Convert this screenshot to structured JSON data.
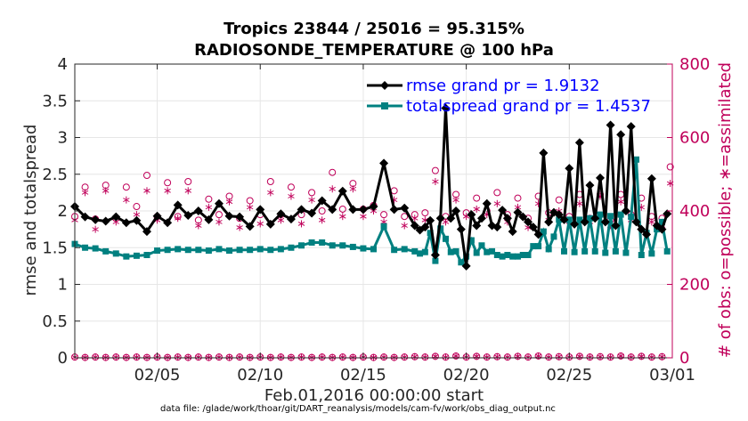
{
  "colors": {
    "rmse": "#000000",
    "spread": "#008080",
    "obs": "#c0005a",
    "legend_text": "#0000ff",
    "axis": "#262626",
    "grid": "#e6e6e6"
  },
  "chart_data": {
    "type": "line",
    "title_line1": "Tropics 23844 / 25016 = 95.315%",
    "title_line2": "RADIOSONDE_TEMPERATURE @ 100 hPa",
    "xlabel": "Feb.01,2016 00:00:00 start",
    "ylabel_left": "rmse and totalspread",
    "ylabel_right": "# of obs: o=possible; ∗=assimilated",
    "footnote": "data file: /glade/work/thoar/git/DART_reanalysis/models/cam-fv/work/obs_diag_output.nc",
    "legend": [
      "rmse grand pr = 1.9132",
      "totalspread grand pr = 1.4537"
    ],
    "xlim": [
      1,
      30
    ],
    "ylim_left": [
      0,
      4
    ],
    "ylim_right": [
      0,
      800
    ],
    "x_ticks": [
      5,
      10,
      15,
      20,
      25,
      30
    ],
    "x_tick_labels": [
      "02/05",
      "02/10",
      "02/15",
      "02/20",
      "02/25",
      "03/01"
    ],
    "y_ticks_left": [
      0,
      0.5,
      1,
      1.5,
      2,
      2.5,
      3,
      3.5,
      4
    ],
    "y_tick_labels_left": [
      "0",
      "0.5",
      "1",
      "1.5",
      "2",
      "2.5",
      "3",
      "3.5",
      "4"
    ],
    "y_ticks_right": [
      0,
      200,
      400,
      600,
      800
    ],
    "y_tick_labels_right": [
      "0",
      "200",
      "400",
      "600",
      "800"
    ],
    "rmse": {
      "x": [
        1.0,
        1.5,
        2.0,
        2.5,
        3.0,
        3.5,
        4.0,
        4.5,
        5.0,
        5.5,
        6.0,
        6.5,
        7.0,
        7.5,
        8.0,
        8.5,
        9.0,
        9.5,
        10.0,
        10.5,
        11.0,
        11.5,
        12.0,
        12.5,
        13.0,
        13.5,
        14.0,
        14.5,
        15.0,
        15.5,
        16.0,
        16.5,
        17.0,
        17.5,
        17.75,
        18.0,
        18.25,
        18.5,
        18.75,
        19.0,
        19.25,
        19.5,
        19.75,
        20.0,
        20.25,
        20.5,
        20.75,
        21.0,
        21.25,
        21.5,
        21.75,
        22.0,
        22.25,
        22.5,
        22.75,
        23.0,
        23.25,
        23.5,
        23.75,
        24.0,
        24.25,
        24.5,
        24.75,
        25.0,
        25.25,
        25.5,
        25.75,
        26.0,
        26.25,
        26.5,
        26.75,
        27.0,
        27.25,
        27.5,
        27.75,
        28.0,
        28.25,
        28.5,
        28.75,
        29.0,
        29.25,
        29.5,
        29.75
      ],
      "y": [
        2.06,
        1.92,
        1.88,
        1.86,
        1.92,
        1.84,
        1.87,
        1.72,
        1.93,
        1.84,
        2.08,
        1.94,
        2.0,
        1.88,
        2.1,
        1.93,
        1.92,
        1.79,
        2.02,
        1.82,
        1.96,
        1.89,
        2.02,
        1.97,
        2.14,
        2.02,
        2.27,
        2.02,
        2.02,
        2.06,
        2.65,
        2.02,
        2.04,
        1.8,
        1.74,
        1.78,
        1.87,
        1.4,
        1.9,
        3.4,
        1.9,
        2.0,
        1.75,
        1.25,
        1.95,
        1.8,
        1.9,
        2.1,
        1.8,
        1.78,
        2.01,
        1.9,
        1.72,
        1.98,
        1.92,
        1.85,
        1.78,
        1.68,
        2.79,
        1.85,
        1.98,
        1.95,
        1.88,
        2.58,
        1.82,
        2.93,
        1.85,
        2.35,
        1.9,
        2.45,
        1.85,
        3.17,
        1.8,
        3.04,
        2.0,
        3.15,
        1.85,
        1.75,
        1.68,
        2.44,
        1.8,
        1.75,
        1.96
      ]
    },
    "totalspread": {
      "x": [
        1.0,
        1.5,
        2.0,
        2.5,
        3.0,
        3.5,
        4.0,
        4.5,
        5.0,
        5.5,
        6.0,
        6.5,
        7.0,
        7.5,
        8.0,
        8.5,
        9.0,
        9.5,
        10.0,
        10.5,
        11.0,
        11.5,
        12.0,
        12.5,
        13.0,
        13.5,
        14.0,
        14.5,
        15.0,
        15.5,
        16.0,
        16.5,
        17.0,
        17.5,
        17.75,
        18.0,
        18.25,
        18.5,
        18.75,
        19.0,
        19.25,
        19.5,
        19.75,
        20.0,
        20.25,
        20.5,
        20.75,
        21.0,
        21.25,
        21.5,
        21.75,
        22.0,
        22.25,
        22.5,
        22.75,
        23.0,
        23.25,
        23.5,
        23.75,
        24.0,
        24.25,
        24.5,
        24.75,
        25.0,
        25.25,
        25.5,
        25.75,
        26.0,
        26.25,
        26.5,
        26.75,
        27.0,
        27.25,
        27.5,
        27.75,
        28.0,
        28.25,
        28.5,
        28.75,
        29.0,
        29.25,
        29.5,
        29.75
      ],
      "y": [
        1.55,
        1.5,
        1.49,
        1.45,
        1.42,
        1.38,
        1.39,
        1.4,
        1.46,
        1.47,
        1.48,
        1.47,
        1.47,
        1.46,
        1.48,
        1.46,
        1.47,
        1.47,
        1.48,
        1.47,
        1.48,
        1.5,
        1.53,
        1.57,
        1.57,
        1.53,
        1.53,
        1.51,
        1.49,
        1.48,
        1.79,
        1.47,
        1.48,
        1.45,
        1.42,
        1.44,
        1.7,
        1.32,
        1.76,
        1.62,
        1.44,
        1.45,
        1.3,
        1.38,
        1.6,
        1.43,
        1.53,
        1.44,
        1.45,
        1.4,
        1.38,
        1.4,
        1.38,
        1.38,
        1.4,
        1.4,
        1.52,
        1.52,
        1.72,
        1.48,
        1.65,
        1.88,
        1.45,
        1.88,
        1.44,
        1.88,
        1.45,
        1.9,
        1.45,
        1.95,
        1.43,
        1.93,
        1.45,
        1.95,
        1.43,
        1.92,
        2.7,
        1.4,
        1.7,
        1.42,
        1.75,
        1.85,
        1.45
      ]
    },
    "obs_possible": {
      "x": [
        1.0,
        1.5,
        2.0,
        2.5,
        3.0,
        3.5,
        4.0,
        4.5,
        5.0,
        5.5,
        6.0,
        6.5,
        7.0,
        7.5,
        8.0,
        8.5,
        9.0,
        9.5,
        10.0,
        10.5,
        11.0,
        11.5,
        12.0,
        12.5,
        13.0,
        13.5,
        14.0,
        14.5,
        15.0,
        15.5,
        16.0,
        16.5,
        17.0,
        17.5,
        18.0,
        18.5,
        19.0,
        19.5,
        20.0,
        20.5,
        21.0,
        21.5,
        22.0,
        22.5,
        23.0,
        23.5,
        24.0,
        24.5,
        25.0,
        25.5,
        26.0,
        26.5,
        27.0,
        27.5,
        28.0,
        28.5,
        29.0,
        29.5,
        29.9
      ],
      "y": [
        385,
        465,
        378,
        470,
        380,
        465,
        412,
        497,
        385,
        477,
        385,
        480,
        375,
        432,
        390,
        440,
        380,
        428,
        390,
        480,
        390,
        465,
        390,
        450,
        400,
        505,
        405,
        475,
        405,
        415,
        390,
        455,
        385,
        390,
        395,
        510,
        385,
        445,
        395,
        435,
        400,
        450,
        390,
        435,
        380,
        440,
        395,
        430,
        385,
        445,
        380,
        445,
        375,
        445,
        390,
        435,
        385,
        380,
        520
      ]
    },
    "obs_assimilated": {
      "x": [
        1.0,
        1.5,
        2.0,
        2.5,
        3.0,
        3.5,
        4.0,
        4.5,
        5.0,
        5.5,
        6.0,
        6.5,
        7.0,
        7.5,
        8.0,
        8.5,
        9.0,
        9.5,
        10.0,
        10.5,
        11.0,
        11.5,
        12.0,
        12.5,
        13.0,
        13.5,
        14.0,
        14.5,
        15.0,
        15.5,
        16.0,
        16.5,
        17.0,
        17.5,
        18.0,
        18.5,
        19.0,
        19.5,
        20.0,
        20.5,
        21.0,
        21.5,
        22.0,
        22.5,
        23.0,
        23.5,
        24.0,
        24.5,
        25.0,
        25.5,
        26.0,
        26.5,
        27.0,
        27.5,
        28.0,
        28.5,
        29.0,
        29.5,
        29.9
      ],
      "y": [
        375,
        450,
        350,
        455,
        370,
        430,
        390,
        455,
        375,
        455,
        380,
        455,
        360,
        410,
        370,
        425,
        355,
        410,
        365,
        450,
        375,
        440,
        365,
        430,
        375,
        460,
        385,
        460,
        385,
        400,
        370,
        430,
        360,
        380,
        375,
        480,
        370,
        430,
        385,
        405,
        390,
        420,
        370,
        410,
        355,
        420,
        375,
        400,
        370,
        420,
        370,
        440,
        360,
        425,
        375,
        410,
        370,
        360,
        475
      ]
    },
    "obs_possible_low": {
      "x": [
        1.0,
        1.5,
        2.0,
        2.5,
        3.0,
        3.5,
        4.0,
        4.5,
        5.0,
        5.5,
        6.0,
        6.5,
        7.0,
        7.5,
        8.0,
        8.5,
        9.0,
        9.5,
        10.0,
        10.5,
        11.0,
        11.5,
        12.0,
        12.5,
        13.0,
        13.5,
        14.0,
        14.5,
        15.0,
        15.5,
        16.0,
        16.5,
        17.0,
        17.5,
        18.0,
        18.5,
        19.0,
        19.5,
        20.0,
        20.5,
        21.0,
        21.5,
        22.0,
        22.5,
        23.0,
        23.5,
        24.0,
        24.5,
        25.0,
        25.5,
        26.0,
        26.5,
        27.0,
        27.5,
        28.0,
        28.5,
        29.0,
        29.5
      ],
      "y": [
        2,
        1,
        2,
        1,
        2,
        1,
        2,
        1,
        2,
        1,
        2,
        1,
        2,
        1,
        2,
        1,
        2,
        1,
        2,
        1,
        2,
        1,
        2,
        1,
        2,
        1,
        2,
        1,
        2,
        1,
        2,
        1,
        2,
        3,
        2,
        4,
        2,
        5,
        2,
        4,
        2,
        3,
        2,
        4,
        2,
        5,
        2,
        3,
        2,
        4,
        2,
        3,
        2,
        5,
        2,
        4,
        2,
        3
      ]
    }
  }
}
